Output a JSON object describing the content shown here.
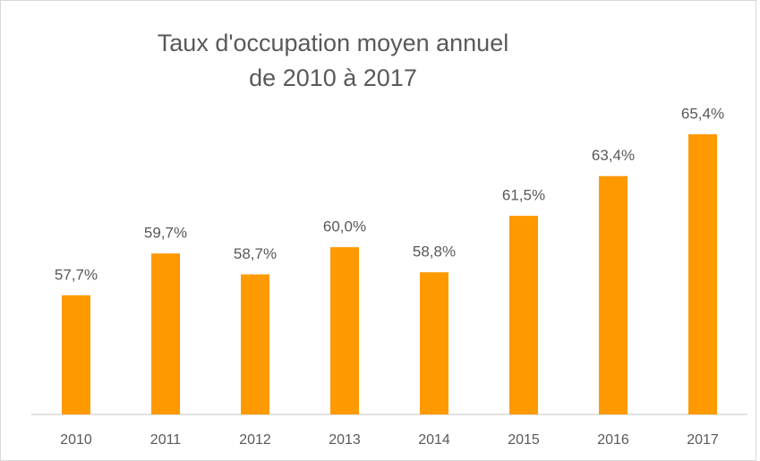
{
  "chart_data": {
    "type": "bar",
    "title": [
      "Taux d'occupation moyen annuel",
      "de 2010 à 2017"
    ],
    "categories": [
      "2010",
      "2011",
      "2012",
      "2013",
      "2014",
      "2015",
      "2016",
      "2017"
    ],
    "values": [
      57.7,
      59.7,
      58.7,
      60.0,
      58.8,
      61.5,
      63.4,
      65.4
    ],
    "value_labels": [
      "57,7%",
      "59,7%",
      "58,7%",
      "60,0%",
      "58,8%",
      "61,5%",
      "63,4%",
      "65,4%"
    ],
    "color": "#ff9900",
    "ylim": [
      52,
      66
    ],
    "grid": false
  }
}
